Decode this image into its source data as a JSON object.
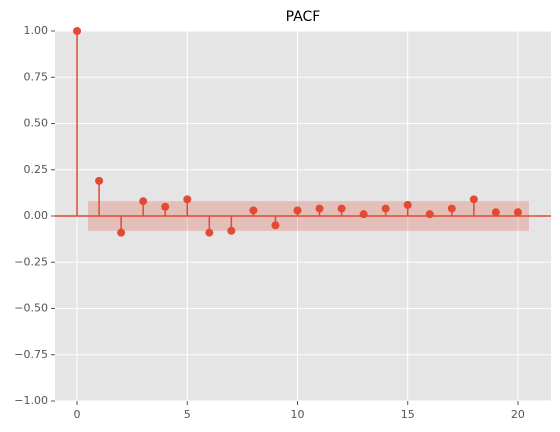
{
  "chart_data": {
    "type": "stem",
    "title": "PACF",
    "x": [
      0,
      1,
      2,
      3,
      4,
      5,
      6,
      7,
      8,
      9,
      10,
      11,
      12,
      13,
      14,
      15,
      16,
      17,
      18,
      19,
      20
    ],
    "values": [
      1.0,
      0.19,
      -0.09,
      0.08,
      0.05,
      0.09,
      -0.09,
      -0.08,
      0.03,
      -0.05,
      0.03,
      0.04,
      0.04,
      0.01,
      0.04,
      0.06,
      0.01,
      0.04,
      0.09,
      0.02,
      0.02
    ],
    "color": "#e24a33",
    "confidence_band": [
      -0.08,
      0.08
    ],
    "band_x": [
      0.5,
      20.5
    ],
    "band_color": "#e24a33",
    "xlim": [
      -1,
      21.5
    ],
    "ylim": [
      -1,
      1
    ],
    "xticks": [
      0,
      5,
      10,
      15,
      20
    ],
    "yticks": [
      {
        "value": -1,
        "label": "−1.00"
      },
      {
        "value": -0.75,
        "label": "−0.75"
      },
      {
        "value": -0.5,
        "label": "−0.50"
      },
      {
        "value": -0.25,
        "label": "−0.25"
      },
      {
        "value": 0,
        "label": "0.00"
      },
      {
        "value": 0.25,
        "label": "0.25"
      },
      {
        "value": 0.5,
        "label": "0.50"
      },
      {
        "value": 0.75,
        "label": "0.75"
      },
      {
        "value": 1,
        "label": "1.00"
      }
    ],
    "grid": true
  }
}
